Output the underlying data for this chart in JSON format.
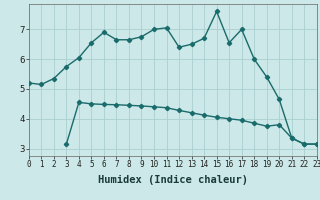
{
  "xlabel": "Humidex (Indice chaleur)",
  "bg_color": "#cce8e8",
  "grid_color": "#aacfcf",
  "line_color": "#1a6b6b",
  "line1_x": [
    0,
    1,
    2,
    3,
    4,
    5,
    6,
    7,
    8,
    9,
    10,
    11,
    12,
    13,
    14,
    15,
    16,
    17,
    18,
    19,
    20,
    21,
    22,
    23
  ],
  "line1_y": [
    5.2,
    5.15,
    5.35,
    5.75,
    6.05,
    6.55,
    6.9,
    6.65,
    6.65,
    6.75,
    7.0,
    7.05,
    6.4,
    6.5,
    6.7,
    7.6,
    6.55,
    7.0,
    6.0,
    5.4,
    4.65,
    3.35,
    3.15,
    3.15
  ],
  "line2_x": [
    3,
    4,
    5,
    6,
    7,
    8,
    9,
    10,
    11,
    12,
    13,
    14,
    15,
    16,
    17,
    18,
    19,
    20,
    21,
    22,
    23
  ],
  "line2_y": [
    3.15,
    4.55,
    4.5,
    4.48,
    4.47,
    4.45,
    4.43,
    4.4,
    4.37,
    4.28,
    4.2,
    4.12,
    4.05,
    4.0,
    3.95,
    3.85,
    3.75,
    3.8,
    3.35,
    3.15,
    3.15
  ],
  "xlim": [
    0,
    23
  ],
  "ylim": [
    2.75,
    7.85
  ],
  "yticks": [
    3,
    4,
    5,
    6,
    7
  ],
  "xticks": [
    0,
    1,
    2,
    3,
    4,
    5,
    6,
    7,
    8,
    9,
    10,
    11,
    12,
    13,
    14,
    15,
    16,
    17,
    18,
    19,
    20,
    21,
    22,
    23
  ],
  "marker": "D",
  "marker_size": 2.2,
  "line_width": 1.0,
  "tick_fontsize": 5.5,
  "xlabel_fontsize": 7.5
}
